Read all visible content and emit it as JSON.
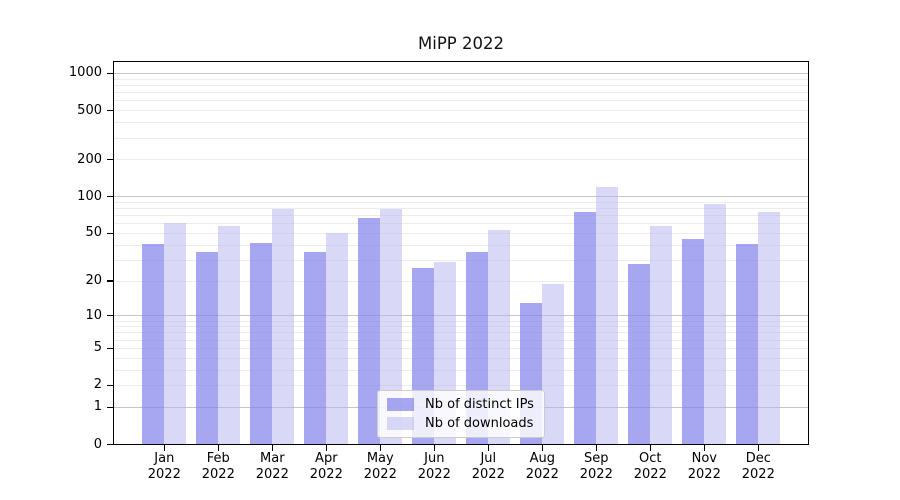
{
  "chart_data": {
    "type": "bar",
    "title": "MiPP 2022",
    "year_label": "2022",
    "categories": [
      "Jan",
      "Feb",
      "Mar",
      "Apr",
      "May",
      "Jun",
      "Jul",
      "Aug",
      "Sep",
      "Oct",
      "Nov",
      "Dec"
    ],
    "series": [
      {
        "name": "Nb of distinct IPs",
        "color": "rgba(131,131,236,0.72)",
        "color_on_white": "#a6a6f1",
        "values": [
          41,
          35,
          42,
          35,
          67,
          26,
          35,
          13,
          75,
          28,
          45,
          41
        ]
      },
      {
        "name": "Nb of downloads",
        "color": "rgba(179,179,239,0.5)",
        "color_on_white": "#d9d9f7",
        "values": [
          61,
          58,
          80,
          51,
          80,
          29,
          54,
          19,
          120,
          58,
          88,
          75
        ]
      }
    ],
    "y_axis": {
      "scale": "log10(value+1)",
      "tick_labels": [
        "1000",
        "500",
        "200",
        "100",
        "50",
        "20",
        "10",
        "5",
        "2",
        "1",
        "0"
      ],
      "major_gridlines": [
        1000,
        100,
        10,
        1
      ],
      "minor_gridlines": [
        900,
        800,
        700,
        600,
        500,
        400,
        300,
        200,
        90,
        80,
        70,
        60,
        50,
        40,
        30,
        20,
        9,
        8,
        7,
        6,
        5,
        4,
        3,
        2
      ],
      "ylim": [
        0,
        1400
      ]
    },
    "legend": {
      "position": "lower center",
      "entries": [
        "Nb of distinct IPs",
        "Nb of downloads"
      ]
    },
    "grid": true,
    "colors": {
      "major_grid": "#c6c6c6",
      "minor_grid": "#ececec",
      "background": "#ffffff",
      "spine": "#000000"
    }
  }
}
